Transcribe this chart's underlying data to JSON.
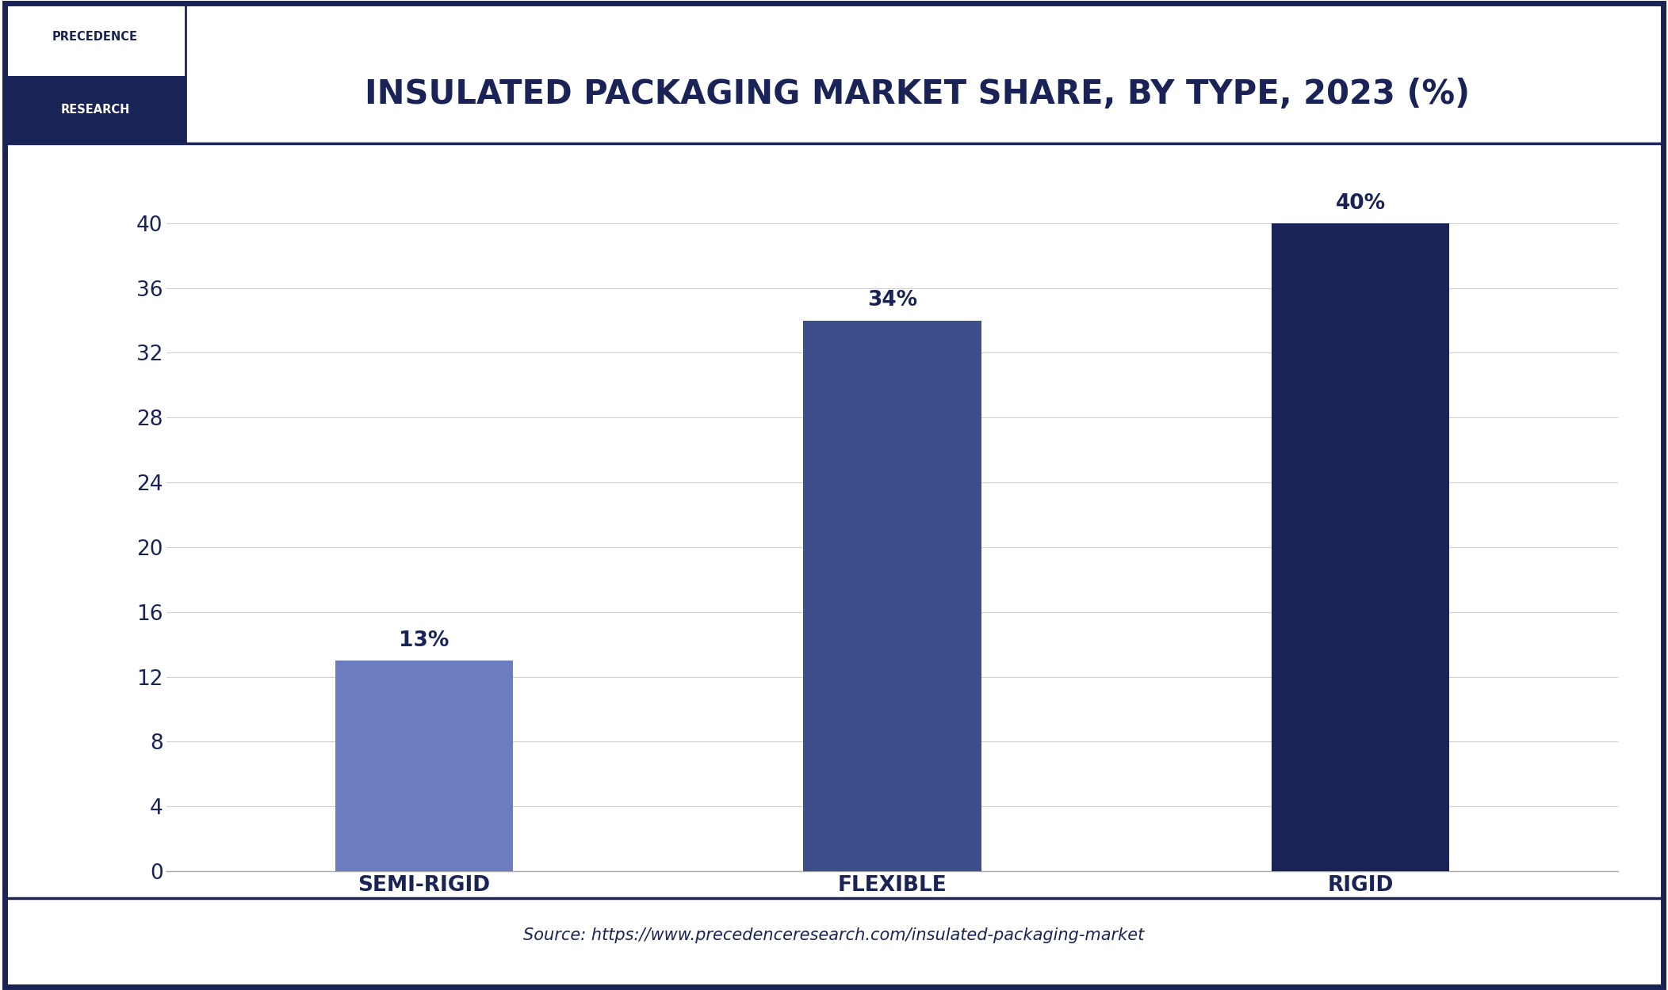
{
  "title": "INSULATED PACKAGING MARKET SHARE, BY TYPE, 2023 (%)",
  "categories": [
    "SEMI-RIGID",
    "FLEXIBLE",
    "RIGID"
  ],
  "values": [
    13,
    34,
    40
  ],
  "labels": [
    "13%",
    "34%",
    "40%"
  ],
  "bar_colors": [
    "#6b7cbf",
    "#3d4f8a",
    "#1a2355"
  ],
  "background_color": "#ffffff",
  "plot_bg_color": "#ffffff",
  "title_color": "#1a2355",
  "tick_label_color": "#1a2355",
  "source_text": "Source: https://www.precedenceresearch.com/insulated-packaging-market",
  "ylim": [
    0,
    44
  ],
  "yticks": [
    0,
    4,
    8,
    12,
    16,
    20,
    24,
    28,
    32,
    36,
    40
  ],
  "grid_color": "#d0d0d0",
  "border_color": "#1a2355",
  "title_fontsize": 30,
  "tick_fontsize": 19,
  "source_fontsize": 15,
  "bar_label_fontsize": 19,
  "logo_text_top": "PRECEDENCE",
  "logo_text_bottom": "RESEARCH"
}
